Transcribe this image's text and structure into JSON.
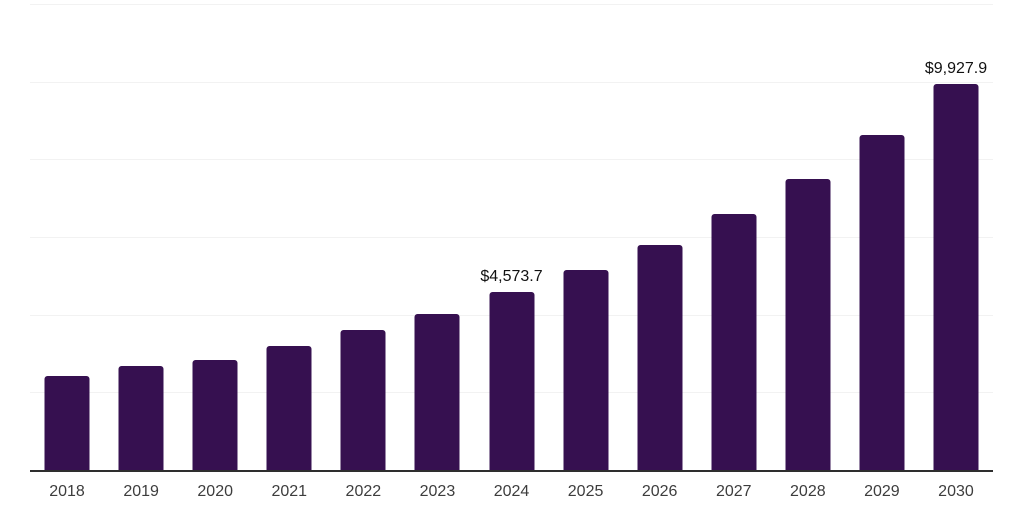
{
  "chart_data": {
    "type": "bar",
    "title": "",
    "xlabel": "",
    "ylabel": "",
    "categories": [
      "2018",
      "2019",
      "2020",
      "2021",
      "2022",
      "2023",
      "2024",
      "2025",
      "2026",
      "2027",
      "2028",
      "2029",
      "2030"
    ],
    "values": [
      2430,
      2685,
      2840,
      3195,
      3605,
      4015,
      4573.7,
      5140,
      5805,
      6595,
      7490,
      8615,
      9927.9
    ],
    "point_labels": [
      "",
      "",
      "",
      "",
      "",
      "",
      "$4,573.7",
      "",
      "",
      "",
      "",
      "",
      "$9,927.9"
    ],
    "ylim": [
      0,
      12000
    ],
    "gridline_step": 2000,
    "grid": "horizontal-only",
    "legend_position": "none",
    "y_axis_tick_labels_visible": false,
    "colors": {
      "bar": "#361050",
      "axis": "#2e2e2e",
      "gridline": "#f2f2f2",
      "tick_label": "#3d3d3d",
      "value_label": "#111111",
      "background": "#ffffff"
    }
  }
}
